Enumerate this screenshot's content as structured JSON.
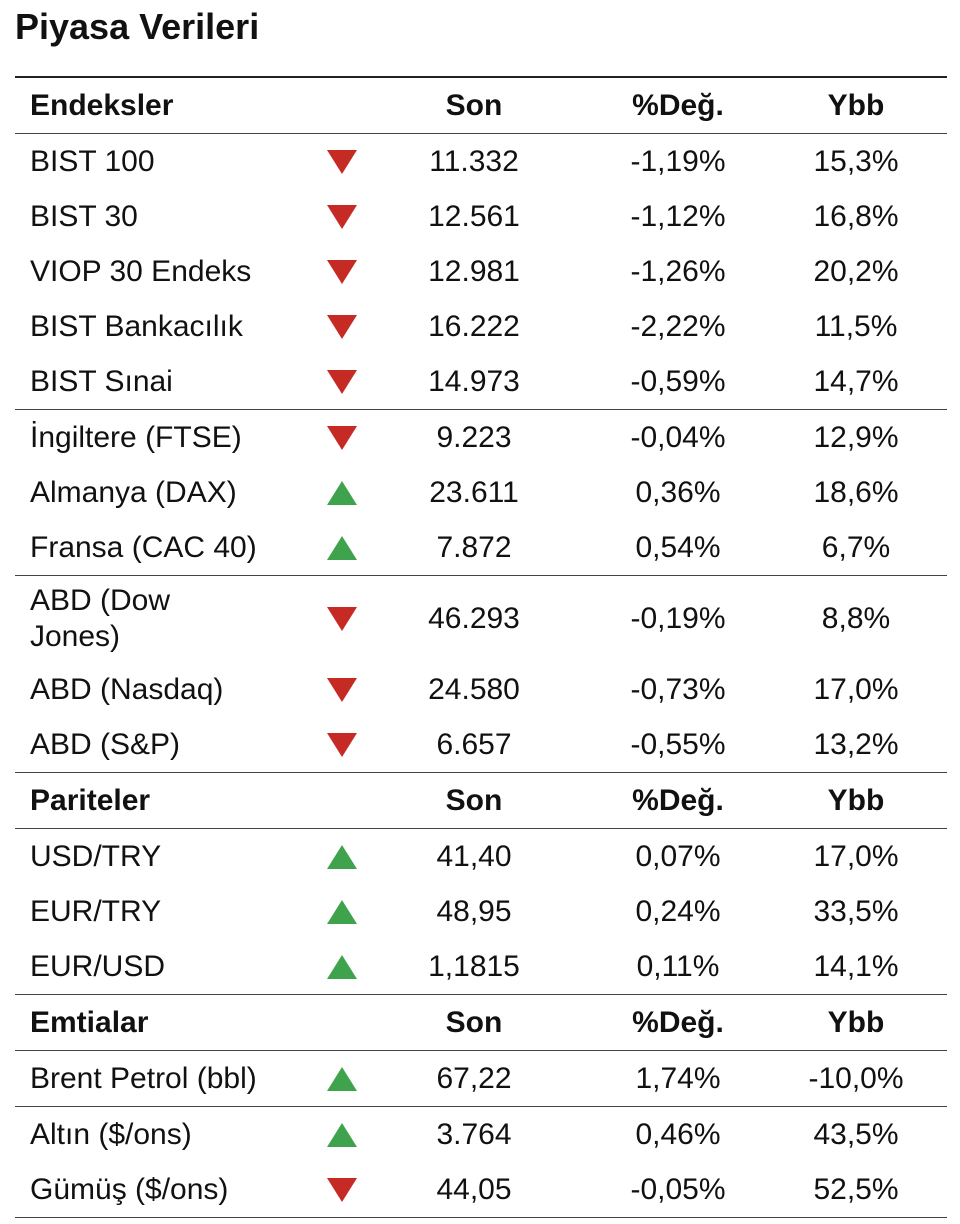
{
  "title": "Piyasa Verileri",
  "sections": [
    {
      "header": [
        "Endeksler",
        "Son",
        "%Değ.",
        "Ybb"
      ],
      "groups": [
        [
          [
            "BIST 100",
            "11.332",
            "-1,19%",
            "15,3%"
          ],
          [
            "BIST 30",
            "12.561",
            "-1,12%",
            "16,8%"
          ],
          [
            "VIOP 30 Endeks",
            "12.981",
            "-1,26%",
            "20,2%"
          ],
          [
            "BIST Bankacılık",
            "16.222",
            "-2,22%",
            "11,5%"
          ],
          [
            "BIST Sınai",
            "14.973",
            "-0,59%",
            "14,7%"
          ]
        ],
        [
          [
            "İngiltere (FTSE)",
            "9.223",
            "-0,04%",
            "12,9%"
          ],
          [
            "Almanya (DAX)",
            "23.611",
            "0,36%",
            "18,6%"
          ],
          [
            "Fransa (CAC 40)",
            "7.872",
            "0,54%",
            "6,7%"
          ]
        ],
        [
          [
            "ABD (Dow Jones)",
            "46.293",
            "-0,19%",
            "8,8%"
          ],
          [
            "ABD (Nasdaq)",
            "24.580",
            "-0,73%",
            "17,0%"
          ],
          [
            "ABD (S&P)",
            "6.657",
            "-0,55%",
            "13,2%"
          ]
        ]
      ]
    },
    {
      "header": [
        "Pariteler",
        "Son",
        "%Değ.",
        "Ybb"
      ],
      "groups": [
        [
          [
            "USD/TRY",
            "41,40",
            "0,07%",
            "17,0%"
          ],
          [
            "EUR/TRY",
            "48,95",
            "0,24%",
            "33,5%"
          ],
          [
            "EUR/USD",
            "1,1815",
            "0,11%",
            "14,1%"
          ]
        ]
      ]
    },
    {
      "header": [
        "Emtialar",
        "Son",
        "%Değ.",
        "Ybb"
      ],
      "groups": [
        [
          [
            "Brent Petrol (bbl)",
            "67,22",
            "1,74%",
            "-10,0%"
          ]
        ],
        [
          [
            "Altın ($/ons)",
            "3.764",
            "0,46%",
            "43,5%"
          ],
          [
            "Gümüş ($/ons)",
            "44,05",
            "-0,05%",
            "52,5%"
          ]
        ]
      ]
    }
  ]
}
